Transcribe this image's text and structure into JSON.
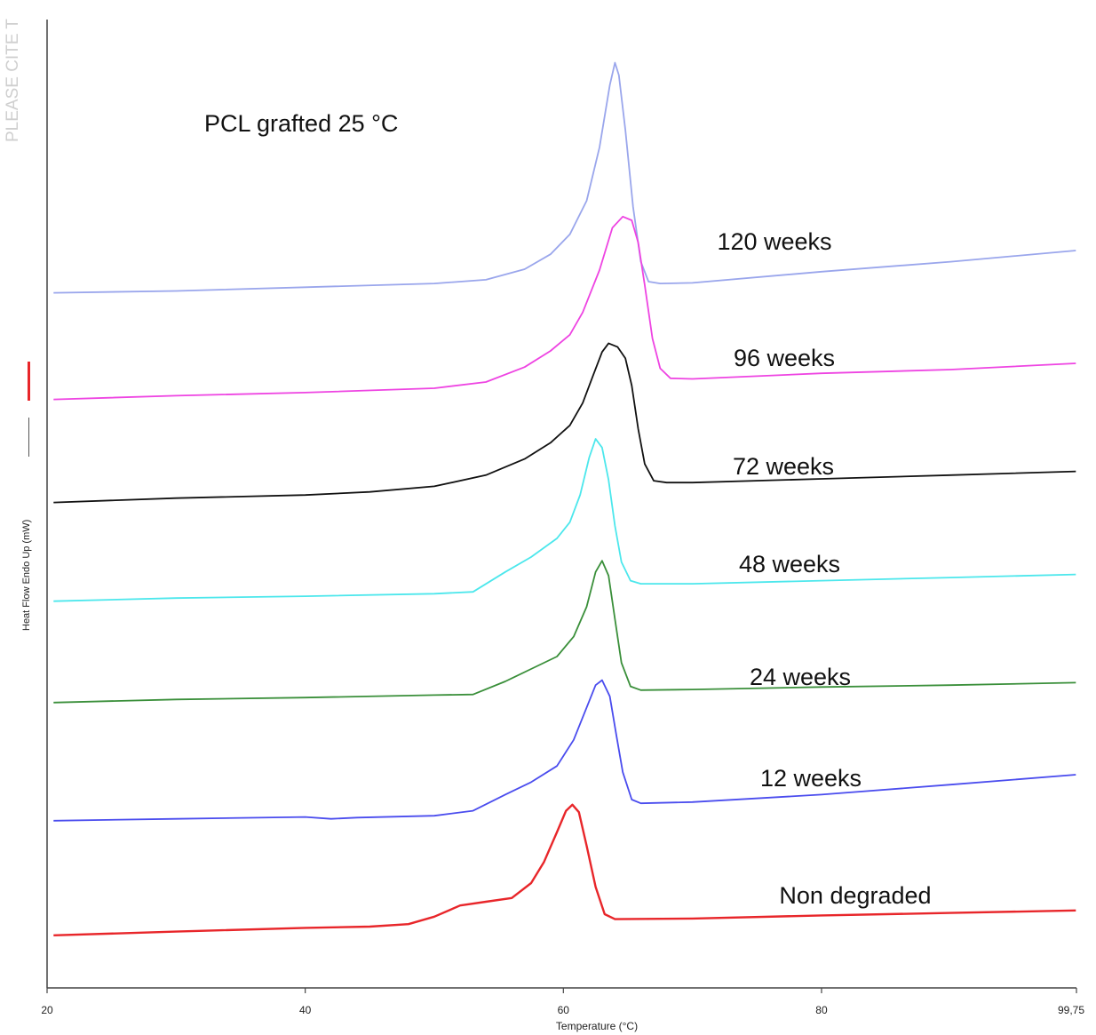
{
  "watermark": "PLEASE CITE T",
  "chart_data": {
    "type": "line",
    "title": "PCL grafted 25 °C",
    "xlabel": "Temperature (°C)",
    "ylabel": "Heat Flow Endo Up (mW)",
    "xlim": [
      20,
      99.75
    ],
    "x_ticks": [
      {
        "value": 20,
        "label": "20"
      },
      {
        "value": 40,
        "label": "40"
      },
      {
        "value": 60,
        "label": "60"
      },
      {
        "value": 80,
        "label": "80"
      },
      {
        "value": 99.75,
        "label": "99,75"
      }
    ],
    "series": [
      {
        "name": "120 weeks",
        "color": "#9aa6ec",
        "points": [
          [
            20.5,
            1.1
          ],
          [
            30,
            1.25
          ],
          [
            40,
            1.55
          ],
          [
            50,
            1.85
          ],
          [
            54,
            2.15
          ],
          [
            57,
            3.0
          ],
          [
            59,
            4.2
          ],
          [
            60.5,
            5.8
          ],
          [
            61.8,
            8.5
          ],
          [
            62.8,
            12.8
          ],
          [
            63.6,
            17.8
          ],
          [
            64.0,
            19.6
          ],
          [
            64.3,
            18.6
          ],
          [
            64.8,
            14.2
          ],
          [
            65.4,
            8.0
          ],
          [
            66.0,
            3.6
          ],
          [
            66.6,
            2.0
          ],
          [
            67.5,
            1.85
          ],
          [
            70,
            1.9
          ],
          [
            80,
            2.8
          ],
          [
            90,
            3.6
          ],
          [
            99.7,
            4.5
          ]
        ]
      },
      {
        "name": "96 weeks",
        "color": "#ee44e2",
        "points": [
          [
            20.5,
            0.6
          ],
          [
            30,
            0.9
          ],
          [
            40,
            1.15
          ],
          [
            50,
            1.5
          ],
          [
            54,
            2.0
          ],
          [
            57,
            3.2
          ],
          [
            59,
            4.5
          ],
          [
            60.5,
            5.8
          ],
          [
            61.5,
            7.6
          ],
          [
            62.8,
            11.0
          ],
          [
            63.8,
            14.4
          ],
          [
            64.6,
            15.3
          ],
          [
            65.3,
            15.0
          ],
          [
            65.8,
            13.2
          ],
          [
            66.3,
            9.8
          ],
          [
            66.9,
            5.5
          ],
          [
            67.5,
            3.1
          ],
          [
            68.3,
            2.3
          ],
          [
            70,
            2.25
          ],
          [
            80,
            2.7
          ],
          [
            90,
            3.0
          ],
          [
            99.7,
            3.5
          ]
        ]
      },
      {
        "name": "72 weeks",
        "color": "#111111",
        "points": [
          [
            20.5,
            0.6
          ],
          [
            30,
            0.95
          ],
          [
            40,
            1.2
          ],
          [
            45,
            1.45
          ],
          [
            50,
            1.9
          ],
          [
            54,
            2.8
          ],
          [
            57,
            4.1
          ],
          [
            59,
            5.4
          ],
          [
            60.5,
            6.8
          ],
          [
            61.5,
            8.6
          ],
          [
            62.3,
            10.8
          ],
          [
            63.0,
            12.7
          ],
          [
            63.5,
            13.4
          ],
          [
            64.2,
            13.1
          ],
          [
            64.8,
            12.2
          ],
          [
            65.3,
            10.0
          ],
          [
            65.8,
            6.5
          ],
          [
            66.3,
            3.7
          ],
          [
            67,
            2.35
          ],
          [
            68,
            2.2
          ],
          [
            70,
            2.2
          ],
          [
            80,
            2.5
          ],
          [
            90,
            2.8
          ],
          [
            99.7,
            3.1
          ]
        ]
      },
      {
        "name": "48 weeks",
        "color": "#4ce7ec",
        "points": [
          [
            20.5,
            0.45
          ],
          [
            30,
            0.7
          ],
          [
            40,
            0.85
          ],
          [
            50,
            1.05
          ],
          [
            53,
            1.2
          ],
          [
            55.5,
            2.8
          ],
          [
            57.5,
            4.0
          ],
          [
            59.5,
            5.5
          ],
          [
            60.5,
            6.8
          ],
          [
            61.3,
            9.0
          ],
          [
            62.0,
            12.0
          ],
          [
            62.5,
            13.5
          ],
          [
            63.0,
            12.8
          ],
          [
            63.5,
            10.2
          ],
          [
            64.0,
            6.5
          ],
          [
            64.5,
            3.6
          ],
          [
            65.2,
            2.1
          ],
          [
            66,
            1.85
          ],
          [
            70,
            1.85
          ],
          [
            80,
            2.1
          ],
          [
            90,
            2.35
          ],
          [
            99.7,
            2.6
          ]
        ]
      },
      {
        "name": "24 weeks",
        "color": "#3a8f3a",
        "points": [
          [
            20.5,
            0.3
          ],
          [
            30,
            0.55
          ],
          [
            40,
            0.7
          ],
          [
            50,
            0.9
          ],
          [
            53,
            0.95
          ],
          [
            55.5,
            2.0
          ],
          [
            57.5,
            3.0
          ],
          [
            59.5,
            4.0
          ],
          [
            60.8,
            5.6
          ],
          [
            61.8,
            8.0
          ],
          [
            62.5,
            10.8
          ],
          [
            63.0,
            11.7
          ],
          [
            63.5,
            10.5
          ],
          [
            64.0,
            7.0
          ],
          [
            64.5,
            3.5
          ],
          [
            65.2,
            1.6
          ],
          [
            66,
            1.3
          ],
          [
            70,
            1.35
          ],
          [
            80,
            1.55
          ],
          [
            90,
            1.7
          ],
          [
            99.7,
            1.9
          ]
        ]
      },
      {
        "name": "12 weeks",
        "color": "#4a4cee",
        "points": [
          [
            20.5,
            0.3
          ],
          [
            30,
            0.45
          ],
          [
            40,
            0.6
          ],
          [
            42,
            0.45
          ],
          [
            44,
            0.55
          ],
          [
            50,
            0.7
          ],
          [
            53,
            1.1
          ],
          [
            55.5,
            2.4
          ],
          [
            57.5,
            3.4
          ],
          [
            59.5,
            4.7
          ],
          [
            60.8,
            6.8
          ],
          [
            61.8,
            9.4
          ],
          [
            62.5,
            11.2
          ],
          [
            63.0,
            11.6
          ],
          [
            63.6,
            10.3
          ],
          [
            64.1,
            7.2
          ],
          [
            64.6,
            4.2
          ],
          [
            65.3,
            2.0
          ],
          [
            66,
            1.7
          ],
          [
            70,
            1.8
          ],
          [
            80,
            2.4
          ],
          [
            90,
            3.2
          ],
          [
            99.7,
            4.0
          ]
        ]
      },
      {
        "name": "Non degraded",
        "color": "#e8262a",
        "points": [
          [
            20.5,
            0.3
          ],
          [
            30,
            0.6
          ],
          [
            40,
            0.9
          ],
          [
            45,
            1.0
          ],
          [
            48,
            1.2
          ],
          [
            50,
            1.8
          ],
          [
            52,
            2.7
          ],
          [
            54,
            3.0
          ],
          [
            56,
            3.3
          ],
          [
            57.5,
            4.5
          ],
          [
            58.5,
            6.2
          ],
          [
            59.5,
            8.6
          ],
          [
            60.2,
            10.3
          ],
          [
            60.7,
            10.8
          ],
          [
            61.2,
            10.2
          ],
          [
            61.8,
            7.5
          ],
          [
            62.5,
            4.2
          ],
          [
            63.2,
            2.0
          ],
          [
            64,
            1.6
          ],
          [
            70,
            1.65
          ],
          [
            80,
            1.9
          ],
          [
            90,
            2.1
          ],
          [
            99.7,
            2.3
          ]
        ]
      }
    ]
  }
}
